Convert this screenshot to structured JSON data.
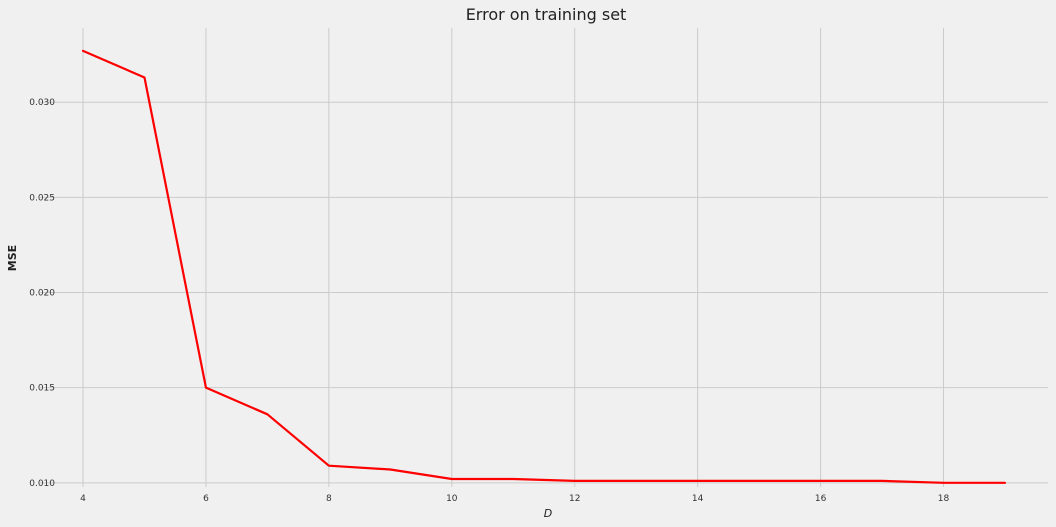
{
  "chart_data": {
    "type": "line",
    "title": "Error on training set",
    "xlabel": "D",
    "ylabel": "MSE",
    "x": [
      4,
      5,
      6,
      7,
      8,
      9,
      10,
      11,
      12,
      13,
      14,
      15,
      16,
      17,
      18,
      19
    ],
    "series": [
      {
        "values": [
          0.0327,
          0.0313,
          0.015,
          0.0136,
          0.0109,
          0.0107,
          0.0102,
          0.0102,
          0.0101,
          0.0101,
          0.0101,
          0.0101,
          0.0101,
          0.0101,
          0.01,
          0.01
        ],
        "color": "#ff0000"
      }
    ],
    "xticks": [
      "4",
      "6",
      "8",
      "10",
      "12",
      "14",
      "16",
      "18"
    ],
    "xtick_values": [
      4,
      6,
      8,
      10,
      12,
      14,
      16,
      18
    ],
    "yticks": [
      "0.010",
      "0.015",
      "0.020",
      "0.025",
      "0.030"
    ],
    "ytick_values": [
      0.01,
      0.015,
      0.02,
      0.025,
      0.03
    ],
    "xlim": [
      3.3,
      19.7
    ],
    "ylim": [
      0.00978,
      0.0339
    ],
    "grid": true,
    "background_color": "#f0f0f0",
    "grid_color": "#cbcbcb"
  }
}
